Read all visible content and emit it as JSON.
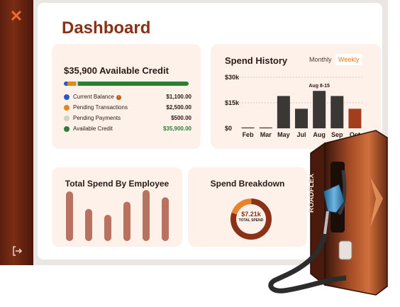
{
  "sidebar": {
    "close_icon": "x-icon",
    "logout_icon": "logout-icon"
  },
  "page": {
    "title": "Dashboard"
  },
  "credit": {
    "title": "$35,900 Available Credit",
    "bar_fractions": [
      0.028,
      0.07,
      0.014,
      0.888
    ],
    "rows": [
      {
        "label": "Current Balance",
        "value": "$1,100.00",
        "color": "#2b57c9",
        "has_info": true
      },
      {
        "label": "Pending Transactions",
        "value": "$2,500.00",
        "color": "#e08a14"
      },
      {
        "label": "Pending Payments",
        "value": "$500.00",
        "color": "#c9d6c2"
      },
      {
        "label": "Available Credit",
        "value": "$35,900.00",
        "color": "#2e7d32",
        "value_color": "#2e7d32"
      }
    ]
  },
  "history": {
    "title": "Spend History",
    "toggle_monthly": "Monthly",
    "toggle_weekly": "Weekly",
    "highlight_label": "Aug 8-15"
  },
  "chart_data": [
    {
      "type": "bar",
      "title": "Spend History",
      "categories": [
        "Feb",
        "Mar",
        "May",
        "Jul",
        "Aug",
        "Sep",
        "Oct"
      ],
      "values": [
        0.5,
        0.5,
        19,
        11.5,
        22,
        19,
        11.5
      ],
      "yticks": [
        "$0",
        "$15k",
        "$30k"
      ],
      "ylim": [
        0,
        30
      ],
      "colors": [
        "#3a3734",
        "#3a3734",
        "#3a3734",
        "#3a3734",
        "#3a3734",
        "#3a3734",
        "#a13e1f"
      ],
      "highlight": "Aug",
      "grid": true
    },
    {
      "type": "bar",
      "title": "Total Spend By Employee",
      "categories": [
        "",
        "",
        "",
        "",
        "",
        ""
      ],
      "values": [
        68,
        44,
        36,
        54,
        70,
        60
      ],
      "color": "#b8725f"
    },
    {
      "type": "pie",
      "title": "Spend Breakdown",
      "center_value": "$7.21k",
      "center_label": "TOTAL SPEND",
      "values": [
        0.8,
        0.2
      ],
      "colors": [
        "#8a3217",
        "#e8832d"
      ]
    }
  ],
  "employee": {
    "title": "Total Spend By Employee"
  },
  "breakdown": {
    "title": "Spend Breakdown",
    "center_value": "$7.21k",
    "center_label": "TOTAL SPEND"
  },
  "pump": {
    "brand": "ROADFLEX",
    "icon": "fuel-pump-illustration"
  }
}
